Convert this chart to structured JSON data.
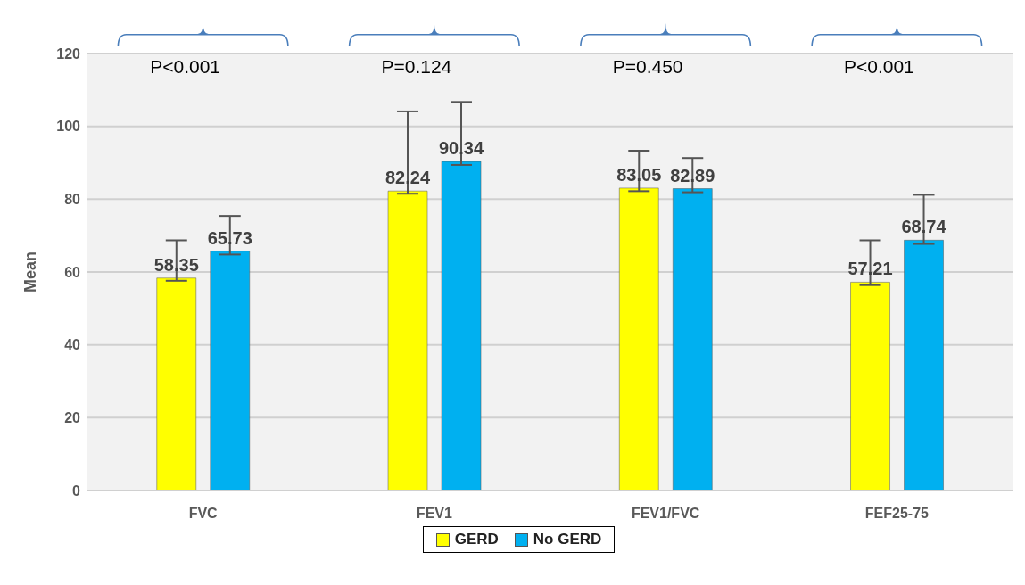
{
  "chart_data": {
    "type": "bar",
    "categories": [
      "FVC",
      "FEV1",
      "FEV1/FVC",
      "FEF25-75"
    ],
    "series": [
      {
        "name": "GERD",
        "color": "#ffff00",
        "values": [
          58.35,
          82.24,
          83.05,
          57.21
        ],
        "errors": [
          [
            57.6,
            68.7
          ],
          [
            81.5,
            104.1
          ],
          [
            82.2,
            93.3
          ],
          [
            56.4,
            68.7
          ]
        ]
      },
      {
        "name": "No GERD",
        "color": "#00b0f0",
        "values": [
          65.73,
          90.34,
          82.89,
          68.74
        ],
        "errors": [
          [
            64.8,
            75.4
          ],
          [
            89.4,
            106.7
          ],
          [
            81.9,
            91.3
          ],
          [
            67.7,
            81.2
          ]
        ]
      }
    ],
    "ylabel": "Mean",
    "ylim": [
      0,
      120
    ],
    "yticks": [
      0,
      20,
      40,
      60,
      80,
      100,
      120
    ],
    "grid": "y",
    "legend": "bottom",
    "data_labels": true,
    "annotations": [
      "P<0.001",
      "P=0.124",
      "P=0.450",
      "P<0.001"
    ]
  }
}
